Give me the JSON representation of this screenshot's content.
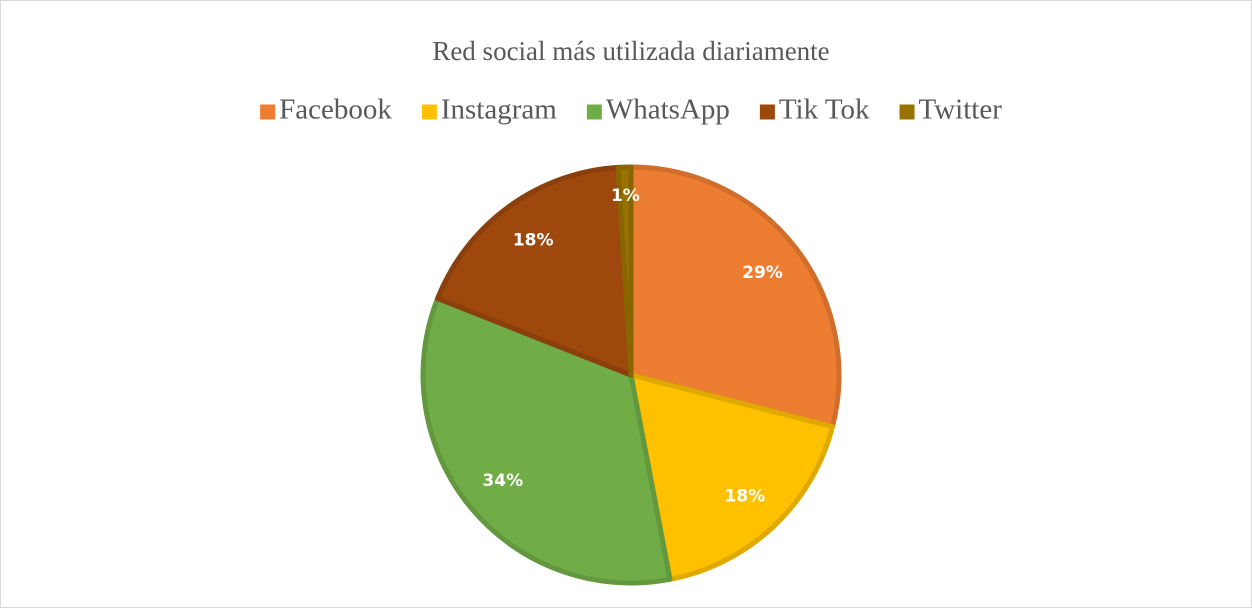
{
  "chart_data": {
    "type": "pie",
    "title": "Red social más utilizada diariamente",
    "categories": [
      "Facebook",
      "Instagram",
      "WhatsApp",
      "Tik Tok",
      "Twitter"
    ],
    "values": [
      29,
      18,
      34,
      18,
      1
    ],
    "value_labels": [
      "29%",
      "18%",
      "34%",
      "18%",
      "1%"
    ],
    "colors": [
      "#ED7D31",
      "#FFC000",
      "#70AD47",
      "#9E480E",
      "#997300"
    ],
    "legend": "top"
  }
}
